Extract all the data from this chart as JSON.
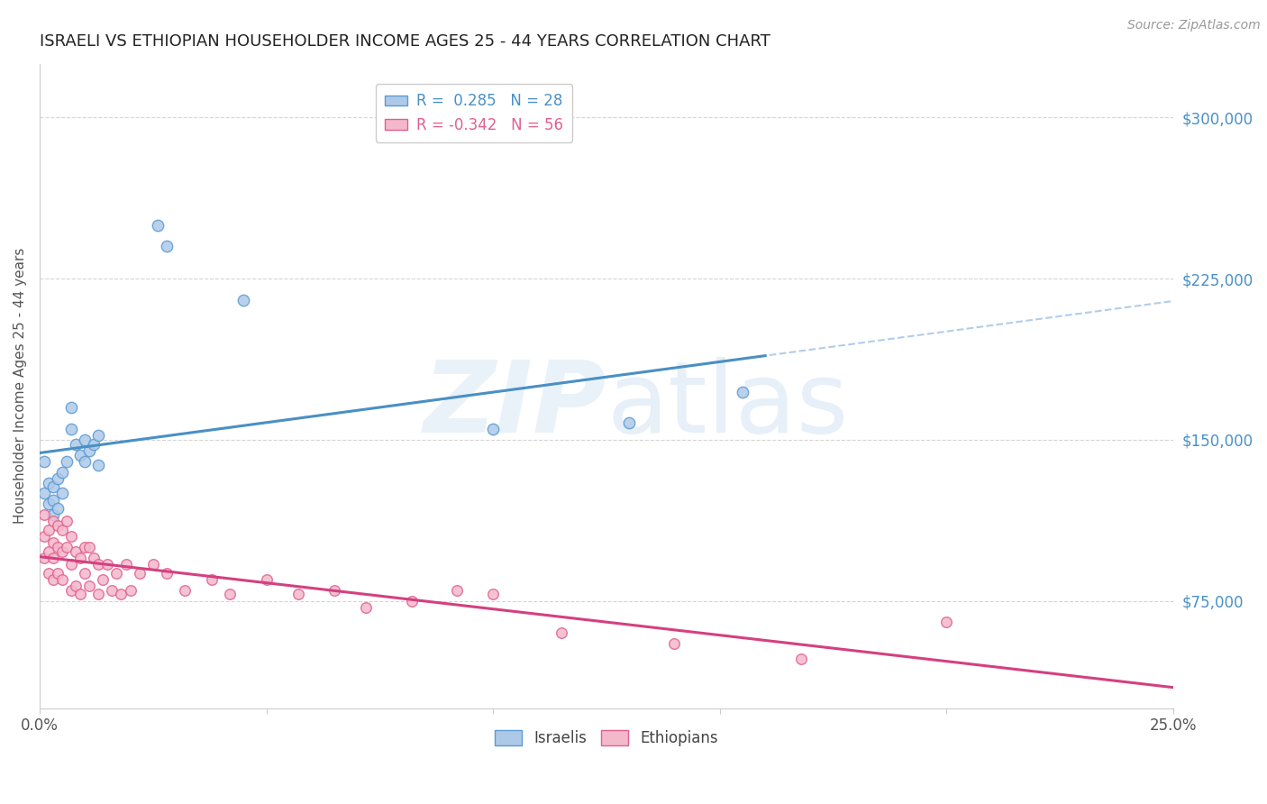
{
  "title": "ISRAELI VS ETHIOPIAN HOUSEHOLDER INCOME AGES 25 - 44 YEARS CORRELATION CHART",
  "source": "Source: ZipAtlas.com",
  "ylabel_label": "Householder Income Ages 25 - 44 years",
  "background_color": "#ffffff",
  "watermark": "ZIPatlas",
  "xlim": [
    0.0,
    0.25
  ],
  "ylim": [
    25000,
    325000
  ],
  "yticks_right": [
    75000,
    150000,
    225000,
    300000
  ],
  "ytick_labels_right": [
    "$75,000",
    "$150,000",
    "$225,000",
    "$300,000"
  ],
  "legend_israeli_r": "R = ",
  "legend_israeli_rval": " 0.285",
  "legend_israeli_n": "  N = ",
  "legend_israeli_nval": "28",
  "legend_ethiopian_r": "R = ",
  "legend_ethiopian_rval": "-0.342",
  "legend_ethiopian_n": "  N = ",
  "legend_ethiopian_nval": "56",
  "israeli_fill": "#aec9e8",
  "ethiopian_fill": "#f4b8cb",
  "israeli_edge": "#5b9bd5",
  "ethiopian_edge": "#e06090",
  "israeli_line_color": "#4a90c4",
  "ethiopian_line_color": "#d44080",
  "dashed_line_color": "#aac8e8",
  "grid_color": "#d5d5d5",
  "israelis_x": [
    0.001,
    0.001,
    0.002,
    0.002,
    0.003,
    0.003,
    0.003,
    0.004,
    0.004,
    0.005,
    0.005,
    0.006,
    0.007,
    0.007,
    0.008,
    0.009,
    0.01,
    0.01,
    0.011,
    0.012,
    0.013,
    0.013,
    0.026,
    0.028,
    0.045,
    0.1,
    0.13,
    0.155
  ],
  "israelis_y": [
    125000,
    140000,
    120000,
    130000,
    115000,
    128000,
    122000,
    132000,
    118000,
    135000,
    125000,
    140000,
    165000,
    155000,
    148000,
    143000,
    150000,
    140000,
    145000,
    148000,
    152000,
    138000,
    250000,
    240000,
    215000,
    155000,
    158000,
    172000
  ],
  "ethiopians_x": [
    0.001,
    0.001,
    0.001,
    0.002,
    0.002,
    0.002,
    0.003,
    0.003,
    0.003,
    0.003,
    0.004,
    0.004,
    0.004,
    0.005,
    0.005,
    0.005,
    0.006,
    0.006,
    0.007,
    0.007,
    0.007,
    0.008,
    0.008,
    0.009,
    0.009,
    0.01,
    0.01,
    0.011,
    0.011,
    0.012,
    0.013,
    0.013,
    0.014,
    0.015,
    0.016,
    0.017,
    0.018,
    0.019,
    0.02,
    0.022,
    0.025,
    0.028,
    0.032,
    0.038,
    0.042,
    0.05,
    0.057,
    0.065,
    0.072,
    0.082,
    0.092,
    0.1,
    0.115,
    0.14,
    0.168,
    0.2
  ],
  "ethiopians_y": [
    115000,
    105000,
    95000,
    108000,
    98000,
    88000,
    112000,
    102000,
    95000,
    85000,
    110000,
    100000,
    88000,
    108000,
    98000,
    85000,
    112000,
    100000,
    105000,
    92000,
    80000,
    98000,
    82000,
    95000,
    78000,
    100000,
    88000,
    100000,
    82000,
    95000,
    78000,
    92000,
    85000,
    92000,
    80000,
    88000,
    78000,
    92000,
    80000,
    88000,
    92000,
    88000,
    80000,
    85000,
    78000,
    85000,
    78000,
    80000,
    72000,
    75000,
    80000,
    78000,
    60000,
    55000,
    48000,
    65000
  ],
  "israeli_dot_size": 80,
  "ethiopian_dot_size": 70
}
